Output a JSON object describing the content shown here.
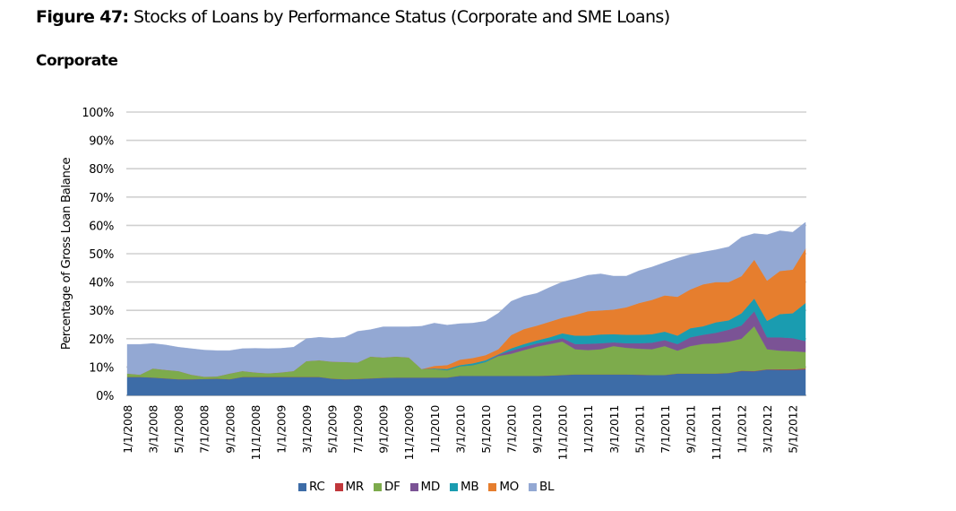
{
  "figure": {
    "label": "Figure 47:",
    "title": "Stocks of Loans by Performance Status (Corporate and SME Loans)",
    "subtitle": "Corporate"
  },
  "chart_data": {
    "type": "area",
    "stacked": true,
    "title": "Stocks of Loans by Performance Status (Corporate and SME Loans)",
    "subtitle": "Corporate",
    "xlabel": "",
    "ylabel": "Percentage of Gross Loan Balance",
    "ylim": [
      0,
      100
    ],
    "y_ticks": [
      "0%",
      "10%",
      "20%",
      "30%",
      "40%",
      "50%",
      "60%",
      "70%",
      "80%",
      "90%",
      "100%"
    ],
    "y_tick_values": [
      0,
      10,
      20,
      30,
      40,
      50,
      60,
      70,
      80,
      90,
      100
    ],
    "grid": true,
    "legend_position": "bottom",
    "x_ticks": [
      "1/1/2008",
      "3/1/2008",
      "5/1/2008",
      "7/1/2008",
      "9/1/2008",
      "11/1/2008",
      "1/1/2009",
      "3/1/2009",
      "5/1/2009",
      "7/1/2009",
      "9/1/2009",
      "11/1/2009",
      "1/1/2010",
      "3/1/2010",
      "5/1/2010",
      "7/1/2010",
      "9/1/2010",
      "11/1/2010",
      "1/1/2011",
      "3/1/2011",
      "5/1/2011",
      "7/1/2011",
      "9/1/2011",
      "11/1/2011",
      "1/1/2012",
      "3/1/2012",
      "5/1/2012"
    ],
    "x_tick_month_index": [
      0,
      2,
      4,
      6,
      8,
      10,
      12,
      14,
      16,
      18,
      20,
      22,
      24,
      26,
      28,
      30,
      32,
      34,
      36,
      38,
      40,
      42,
      44,
      46,
      48,
      50,
      52
    ],
    "x_start": "1/1/2008",
    "x_frequency": "monthly",
    "n_points": 54,
    "series": [
      {
        "name": "RC",
        "color": "#3d6ca7",
        "values": [
          6.5,
          6.5,
          6.3,
          6.0,
          5.7,
          5.7,
          5.8,
          5.9,
          5.7,
          6.5,
          6.5,
          6.5,
          6.5,
          6.5,
          6.5,
          6.5,
          5.9,
          5.7,
          5.8,
          6.0,
          6.2,
          6.3,
          6.3,
          6.3,
          6.3,
          6.3,
          6.9,
          6.9,
          6.9,
          6.9,
          6.9,
          6.9,
          6.9,
          7.0,
          7.2,
          7.4,
          7.4,
          7.4,
          7.4,
          7.4,
          7.3,
          7.2,
          7.2,
          7.7,
          7.7,
          7.7,
          7.7,
          7.9,
          8.6,
          8.5,
          9.1,
          9.0,
          9.0,
          9.2
        ]
      },
      {
        "name": "MR",
        "color": "#c0373b",
        "values": [
          0,
          0,
          0,
          0,
          0,
          0,
          0,
          0,
          0,
          0,
          0,
          0,
          0,
          0,
          0,
          0,
          0,
          0,
          0,
          0,
          0,
          0,
          0,
          0,
          0,
          0,
          0,
          0,
          0,
          0,
          0,
          0,
          0,
          0,
          0,
          0,
          0,
          0,
          0,
          0,
          0,
          0,
          0,
          0,
          0,
          0,
          0,
          0,
          0.1,
          0.1,
          0.1,
          0.2,
          0.2,
          0.3
        ]
      },
      {
        "name": "DF",
        "color": "#7dab4c",
        "values": [
          1.2,
          0.8,
          3.2,
          3.0,
          2.9,
          1.6,
          0.8,
          0.8,
          2.0,
          2.1,
          1.6,
          1.3,
          1.6,
          2.1,
          5.6,
          5.9,
          6.0,
          6.1,
          5.8,
          7.7,
          7.2,
          7.4,
          7.1,
          3.0,
          3.0,
          2.6,
          3.4,
          3.8,
          4.9,
          7.0,
          7.8,
          9.1,
          10.3,
          11.1,
          11.8,
          8.9,
          8.6,
          8.9,
          10.0,
          9.4,
          9.2,
          9.1,
          10.2,
          8.1,
          9.7,
          10.5,
          10.7,
          11.1,
          11.3,
          15.8,
          7.1,
          6.6,
          6.4,
          5.8
        ]
      },
      {
        "name": "MD",
        "color": "#7b5395",
        "values": [
          0,
          0,
          0,
          0,
          0,
          0,
          0,
          0,
          0,
          0,
          0,
          0,
          0,
          0,
          0,
          0,
          0,
          0,
          0,
          0,
          0,
          0,
          0,
          0,
          0,
          0,
          0,
          0,
          0,
          0.4,
          1.1,
          1.1,
          1.1,
          1.1,
          1.2,
          1.8,
          2.2,
          2.1,
          1.3,
          1.6,
          1.9,
          2.3,
          2.1,
          2.3,
          3.1,
          3.2,
          3.7,
          4.2,
          4.7,
          5.3,
          4.2,
          4.7,
          4.6,
          3.9
        ]
      },
      {
        "name": "MB",
        "color": "#1a9cb0",
        "values": [
          0,
          0,
          0,
          0,
          0,
          0,
          0,
          0,
          0,
          0,
          0,
          0,
          0,
          0,
          0,
          0,
          0,
          0,
          0,
          0,
          0,
          0,
          0,
          0,
          0.2,
          0.4,
          0.4,
          0.6,
          0.6,
          0.2,
          0.8,
          1.0,
          1.1,
          1.3,
          1.7,
          3.0,
          2.9,
          3.1,
          2.9,
          3.0,
          3.0,
          3.0,
          3.0,
          3.0,
          3.2,
          3.0,
          3.7,
          3.3,
          4.3,
          4.5,
          5.8,
          8.2,
          8.8,
          13.4
        ]
      },
      {
        "name": "MO",
        "color": "#e67e2e",
        "values": [
          0,
          0,
          0,
          0,
          0,
          0,
          0,
          0,
          0,
          0,
          0,
          0,
          0,
          0,
          0,
          0,
          0,
          0,
          0,
          0,
          0,
          0,
          0,
          0,
          0.9,
          1.4,
          1.9,
          1.9,
          1.8,
          1.8,
          4.7,
          5.3,
          5.2,
          5.5,
          5.5,
          7.3,
          8.6,
          8.5,
          8.7,
          9.7,
          11.2,
          12.1,
          12.8,
          13.7,
          13.7,
          14.8,
          14.2,
          13.5,
          13.1,
          13.7,
          14.2,
          15.2,
          15.4,
          19.2
        ]
      },
      {
        "name": "BL",
        "color": "#93a8d3",
        "values": [
          10.3,
          10.7,
          8.8,
          8.8,
          8.4,
          9.2,
          9.4,
          9.1,
          8.1,
          7.9,
          8.5,
          8.7,
          8.5,
          8.4,
          7.9,
          8.1,
          8.3,
          8.7,
          11.0,
          9.5,
          10.8,
          10.5,
          10.8,
          15.1,
          15.1,
          14.1,
          12.7,
          12.3,
          12.0,
          12.7,
          11.9,
          11.6,
          11.4,
          12.1,
          12.6,
          12.7,
          12.7,
          12.9,
          11.8,
          11.0,
          11.4,
          11.6,
          11.6,
          13.6,
          12.3,
          11.4,
          11.4,
          12.4,
          13.7,
          9.2,
          16.2,
          14.2,
          13.2,
          9.3
        ]
      }
    ]
  }
}
